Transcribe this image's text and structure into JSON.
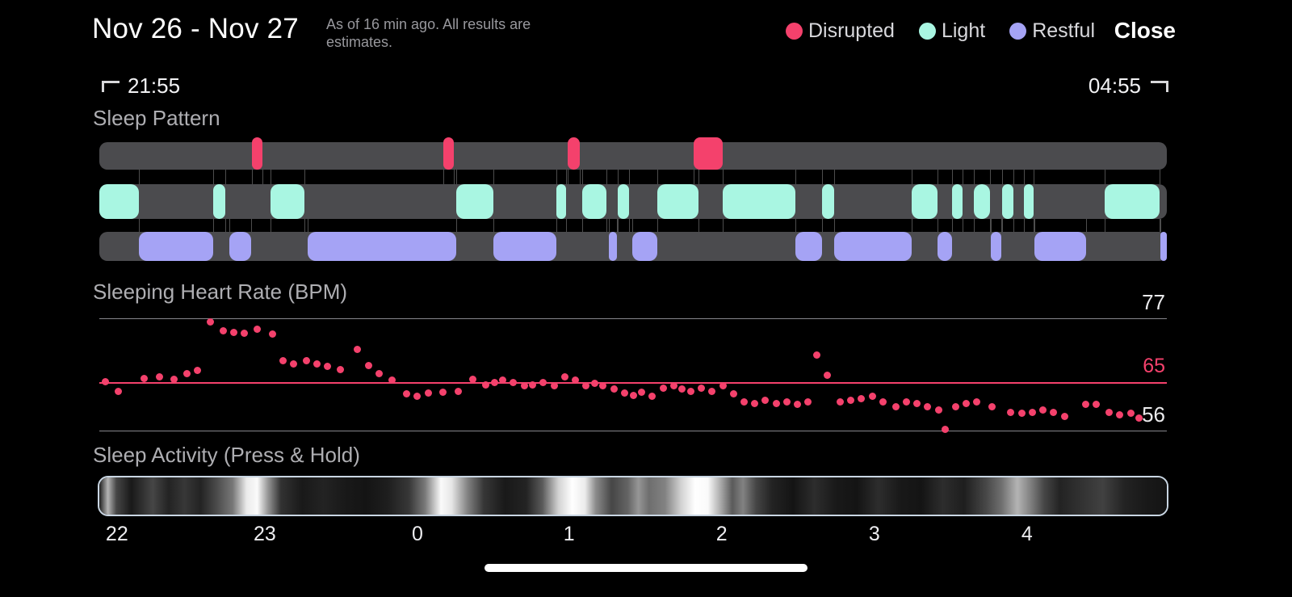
{
  "header": {
    "title": "Nov 26 - Nov 27",
    "subtitle": "As of 16 min ago. All results are estimates.",
    "close_label": "Close",
    "legend": [
      {
        "label": "Disrupted",
        "color": "#F4416C"
      },
      {
        "label": "Light",
        "color": "#A9F6E2"
      },
      {
        "label": "Restful",
        "color": "#A5A3F5"
      }
    ]
  },
  "time_window": {
    "start": "21:55",
    "end": "04:55"
  },
  "colors": {
    "background": "#000000",
    "disrupted": "#F4416C",
    "light": "#A9F6E2",
    "restful": "#A5A3F5",
    "track": "#4B4B4E",
    "grid_line": "#86868B",
    "label_gray": "#AEAEB2",
    "text_white": "#FFFFFF",
    "activity_border": "#C9D6E3"
  },
  "chart_data": [
    {
      "name": "sleep-pattern",
      "title": "Sleep Pattern",
      "type": "bar",
      "x_unit": "percent_of_window",
      "series": [
        {
          "name": "Disrupted",
          "segments": [
            [
              14.3,
              15.3
            ],
            [
              32.2,
              33.2
            ],
            [
              43.9,
              45.0
            ],
            [
              55.7,
              58.4
            ]
          ]
        },
        {
          "name": "Light",
          "segments": [
            [
              0,
              3.7
            ],
            [
              10.7,
              11.8
            ],
            [
              16.0,
              19.2
            ],
            [
              33.4,
              36.9
            ],
            [
              42.8,
              43.7
            ],
            [
              45.2,
              47.5
            ],
            [
              48.6,
              49.6
            ],
            [
              52.3,
              56.1
            ],
            [
              58.4,
              65.2
            ],
            [
              67.7,
              68.8
            ],
            [
              76.1,
              78.5
            ],
            [
              79.9,
              80.9
            ],
            [
              81.9,
              83.4
            ],
            [
              84.6,
              85.6
            ],
            [
              86.6,
              87.5
            ],
            [
              94.2,
              99.3
            ]
          ]
        },
        {
          "name": "Restful",
          "segments": [
            [
              3.7,
              10.7
            ],
            [
              12.2,
              14.2
            ],
            [
              19.5,
              33.4
            ],
            [
              36.9,
              42.8
            ],
            [
              47.7,
              48.5
            ],
            [
              49.9,
              52.3
            ],
            [
              65.2,
              67.7
            ],
            [
              68.8,
              76.1
            ],
            [
              78.5,
              79.9
            ],
            [
              83.5,
              84.5
            ],
            [
              87.6,
              92.4
            ],
            [
              99.4,
              100
            ]
          ]
        }
      ]
    },
    {
      "name": "sleeping-heart-rate",
      "title": "Sleeping Heart Rate (BPM)",
      "type": "scatter",
      "ylabel": "BPM",
      "ylim": [
        56,
        77
      ],
      "guides": {
        "top": 77,
        "avg": 65,
        "bottom": 56
      },
      "points": [
        [
          0.6,
          65.2
        ],
        [
          1.8,
          63.4
        ],
        [
          4.2,
          65.8
        ],
        [
          5.6,
          66.0
        ],
        [
          7.0,
          65.6
        ],
        [
          8.2,
          66.6
        ],
        [
          9.2,
          67.2
        ],
        [
          10.4,
          76.3
        ],
        [
          11.6,
          74.6
        ],
        [
          12.6,
          74.4
        ],
        [
          13.6,
          74.2
        ],
        [
          14.8,
          74.9
        ],
        [
          16.2,
          74.0
        ],
        [
          17.2,
          69.0
        ],
        [
          18.2,
          68.5
        ],
        [
          19.4,
          69.1
        ],
        [
          20.4,
          68.4
        ],
        [
          21.4,
          68.0
        ],
        [
          22.6,
          67.4
        ],
        [
          24.2,
          71.2
        ],
        [
          25.2,
          68.2
        ],
        [
          26.2,
          66.6
        ],
        [
          27.4,
          65.4
        ],
        [
          28.8,
          62.8
        ],
        [
          29.8,
          62.4
        ],
        [
          30.8,
          63.0
        ],
        [
          32.2,
          63.2
        ],
        [
          33.6,
          63.4
        ],
        [
          35.0,
          65.6
        ],
        [
          36.2,
          64.6
        ],
        [
          37.0,
          65.0
        ],
        [
          37.8,
          65.4
        ],
        [
          38.8,
          65.0
        ],
        [
          39.8,
          64.4
        ],
        [
          40.6,
          64.6
        ],
        [
          41.6,
          65.0
        ],
        [
          42.6,
          64.4
        ],
        [
          43.6,
          66.0
        ],
        [
          44.6,
          65.4
        ],
        [
          45.6,
          64.4
        ],
        [
          46.4,
          64.8
        ],
        [
          47.2,
          64.4
        ],
        [
          48.2,
          63.8
        ],
        [
          49.2,
          63.0
        ],
        [
          50.0,
          62.6
        ],
        [
          50.8,
          63.2
        ],
        [
          51.8,
          62.4
        ],
        [
          52.8,
          64.0
        ],
        [
          53.8,
          64.4
        ],
        [
          54.6,
          63.8
        ],
        [
          55.4,
          63.4
        ],
        [
          56.4,
          64.0
        ],
        [
          57.4,
          63.4
        ],
        [
          58.4,
          64.4
        ],
        [
          59.4,
          62.8
        ],
        [
          60.4,
          61.4
        ],
        [
          61.4,
          61.0
        ],
        [
          62.4,
          61.6
        ],
        [
          63.4,
          61.0
        ],
        [
          64.4,
          61.4
        ],
        [
          65.4,
          60.9
        ],
        [
          66.4,
          61.4
        ],
        [
          67.2,
          70.2
        ],
        [
          68.2,
          66.4
        ],
        [
          69.4,
          61.4
        ],
        [
          70.4,
          61.6
        ],
        [
          71.4,
          62.0
        ],
        [
          72.4,
          62.4
        ],
        [
          73.4,
          61.4
        ],
        [
          74.6,
          60.4
        ],
        [
          75.6,
          61.4
        ],
        [
          76.6,
          61.0
        ],
        [
          77.6,
          60.4
        ],
        [
          78.6,
          59.8
        ],
        [
          79.2,
          56.3
        ],
        [
          80.2,
          60.4
        ],
        [
          81.2,
          61.0
        ],
        [
          82.2,
          61.4
        ],
        [
          83.6,
          60.4
        ],
        [
          85.4,
          59.4
        ],
        [
          86.4,
          59.2
        ],
        [
          87.4,
          59.4
        ],
        [
          88.4,
          59.9
        ],
        [
          89.4,
          59.4
        ],
        [
          90.4,
          58.6
        ],
        [
          92.4,
          60.9
        ],
        [
          93.4,
          60.9
        ],
        [
          94.6,
          59.4
        ],
        [
          95.6,
          59.0
        ],
        [
          96.6,
          59.2
        ],
        [
          97.4,
          58.4
        ]
      ]
    },
    {
      "name": "sleep-activity",
      "title": "Sleep Activity (Press & Hold)",
      "type": "heatmap",
      "intensity_stops": [
        [
          0,
          30
        ],
        [
          0.8,
          180
        ],
        [
          1.6,
          70
        ],
        [
          3,
          25
        ],
        [
          5,
          70
        ],
        [
          6.5,
          35
        ],
        [
          8,
          55
        ],
        [
          9.5,
          35
        ],
        [
          11,
          75
        ],
        [
          12.5,
          120
        ],
        [
          13.8,
          235
        ],
        [
          14.8,
          250
        ],
        [
          15.8,
          150
        ],
        [
          17,
          50
        ],
        [
          19,
          25
        ],
        [
          21,
          35
        ],
        [
          23,
          25
        ],
        [
          25,
          20
        ],
        [
          27,
          30
        ],
        [
          29,
          55
        ],
        [
          30.5,
          120
        ],
        [
          32,
          250
        ],
        [
          33,
          230
        ],
        [
          34.5,
          130
        ],
        [
          36,
          55
        ],
        [
          38,
          25
        ],
        [
          40,
          35
        ],
        [
          41.5,
          90
        ],
        [
          43,
          210
        ],
        [
          44.3,
          255
        ],
        [
          45.5,
          235
        ],
        [
          46.5,
          140
        ],
        [
          48,
          70
        ],
        [
          49.5,
          100
        ],
        [
          50.5,
          150
        ],
        [
          51.5,
          110
        ],
        [
          53,
          130
        ],
        [
          54.5,
          210
        ],
        [
          55.8,
          255
        ],
        [
          57,
          250
        ],
        [
          58.2,
          170
        ],
        [
          59.3,
          90
        ],
        [
          60.3,
          130
        ],
        [
          61.5,
          70
        ],
        [
          63,
          35
        ],
        [
          65,
          20
        ],
        [
          67,
          45
        ],
        [
          69,
          25
        ],
        [
          71,
          20
        ],
        [
          73,
          45
        ],
        [
          75,
          25
        ],
        [
          77,
          20
        ],
        [
          79,
          45
        ],
        [
          81,
          30
        ],
        [
          83,
          70
        ],
        [
          84.5,
          110
        ],
        [
          86,
          180
        ],
        [
          87.2,
          130
        ],
        [
          88.5,
          70
        ],
        [
          90,
          35
        ],
        [
          92,
          50
        ],
        [
          94,
          65
        ],
        [
          96,
          35
        ],
        [
          98,
          25
        ],
        [
          100,
          20
        ]
      ],
      "x_ticks": [
        {
          "label": "22",
          "pos": 1.2
        },
        {
          "label": "23",
          "pos": 15.5
        },
        {
          "label": "0",
          "pos": 29.8
        },
        {
          "label": "1",
          "pos": 44.0
        },
        {
          "label": "2",
          "pos": 58.3
        },
        {
          "label": "3",
          "pos": 72.6
        },
        {
          "label": "4",
          "pos": 86.9
        }
      ]
    }
  ]
}
